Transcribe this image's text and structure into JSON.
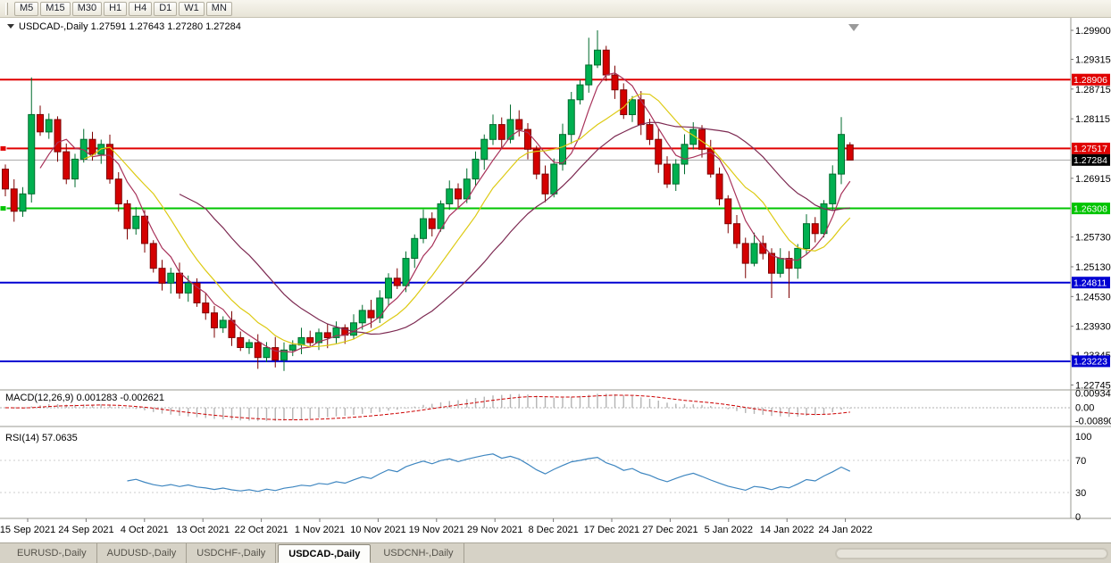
{
  "toolbar": {
    "timeframes": [
      "M5",
      "M15",
      "M30",
      "H1",
      "H4",
      "D1",
      "W1",
      "MN"
    ]
  },
  "chart": {
    "symbol_label": "USDCAD-,Daily",
    "ohlc_string": "1.27591 1.27643 1.27280 1.27284",
    "open": "1.27591",
    "high": "1.27643",
    "low": "1.27280",
    "close": "1.27284",
    "price_axis": [
      "1.29900",
      "1.29315",
      "1.28715",
      "1.28115",
      "1.26915",
      "1.25730",
      "1.25130",
      "1.24530",
      "1.23930",
      "1.23345",
      "1.22745"
    ]
  },
  "macd": {
    "label": "MACD(12,26,9) 0.001283 -0.002621",
    "axis": [
      "0.009345",
      "0.00",
      "-0.008902"
    ]
  },
  "rsi": {
    "label": "RSI(14) 57.0635",
    "axis": [
      "100",
      "70",
      "30",
      "0"
    ]
  },
  "time_axis": [
    "15 Sep 2021",
    "24 Sep 2021",
    "4 Oct 2021",
    "13 Oct 2021",
    "22 Oct 2021",
    "1 Nov 2021",
    "10 Nov 2021",
    "19 Nov 2021",
    "29 Nov 2021",
    "8 Dec 2021",
    "17 Dec 2021",
    "27 Dec 2021",
    "5 Jan 2022",
    "14 Jan 2022",
    "24 Jan 2022"
  ],
  "tabs": [
    {
      "label": "EURUSD-,Daily",
      "active": false
    },
    {
      "label": "AUDUSD-,Daily",
      "active": false
    },
    {
      "label": "USDCHF-,Daily",
      "active": false
    },
    {
      "label": "USDCAD-,Daily",
      "active": true
    },
    {
      "label": "USDCNH-,Daily",
      "active": false
    }
  ],
  "chart_data": {
    "type": "candlestick",
    "symbol": "USDCAD",
    "timeframe": "Daily",
    "price_min": 1.227,
    "price_max": 1.299,
    "visible_range": {
      "start": "15 Sep 2021",
      "end": "28 Jan 2022"
    },
    "last_candle": {
      "open": 1.27591,
      "high": 1.27643,
      "low": 1.2728,
      "close": 1.27284
    },
    "first_open": 1.271,
    "closes": [
      1.267,
      1.2625,
      1.266,
      1.282,
      1.2785,
      1.281,
      1.2745,
      1.269,
      1.273,
      1.277,
      1.274,
      1.276,
      1.269,
      1.264,
      1.259,
      1.2615,
      1.256,
      1.251,
      1.248,
      1.25,
      1.246,
      1.248,
      1.244,
      1.242,
      1.239,
      1.2405,
      1.237,
      1.235,
      1.236,
      1.233,
      1.235,
      1.2325,
      1.2345,
      1.2355,
      1.237,
      1.236,
      1.238,
      1.237,
      1.239,
      1.2375,
      1.24,
      1.2425,
      1.241,
      1.245,
      1.249,
      1.2475,
      1.253,
      1.257,
      1.261,
      1.259,
      1.264,
      1.267,
      1.265,
      1.269,
      1.273,
      1.277,
      1.28,
      1.277,
      1.281,
      1.279,
      1.275,
      1.27,
      1.266,
      1.272,
      1.278,
      1.285,
      1.288,
      1.292,
      1.295,
      1.29,
      1.287,
      1.282,
      1.285,
      1.28,
      1.277,
      1.272,
      1.268,
      1.272,
      1.276,
      1.279,
      1.275,
      1.27,
      1.265,
      1.26,
      1.256,
      1.252,
      1.256,
      1.254,
      1.25,
      1.253,
      1.251,
      1.255,
      1.26,
      1.258,
      1.264,
      1.27,
      1.278,
      1.27284
    ],
    "wick_overrides": {
      "3": {
        "high": 1.2895
      },
      "29": {
        "low": 1.2307
      },
      "31": {
        "low": 1.231
      },
      "58": {
        "high": 1.284
      },
      "67": {
        "high": 1.2975
      },
      "68": {
        "high": 1.299
      },
      "85": {
        "low": 1.249
      },
      "88": {
        "low": 1.245
      },
      "90": {
        "low": 1.245
      },
      "96": {
        "high": 1.2815
      }
    },
    "colors": {
      "bull_fill": "#00b050",
      "bull_border": "#006b2d",
      "bear_fill": "#d40000",
      "bear_border": "#7d0000"
    },
    "levels": [
      {
        "price": "1.28906",
        "color": "#e00000",
        "type": "resistance",
        "edge_marker": false
      },
      {
        "price": "1.27517",
        "color": "#e00000",
        "type": "resistance",
        "edge_marker": true
      },
      {
        "price": "1.26308",
        "color": "#00c400",
        "type": "support",
        "edge_marker": true
      },
      {
        "price": "1.24811",
        "color": "#0000d2",
        "type": "support",
        "edge_marker": false
      },
      {
        "price": "1.23223",
        "color": "#0000d2",
        "type": "support",
        "edge_marker": false
      }
    ],
    "bid_line": {
      "price": "1.27284",
      "line_color": "#a8a8a8",
      "badge_color": "#000000"
    },
    "moving_averages": [
      {
        "period": 5,
        "color": "#a8325a"
      },
      {
        "period": 10,
        "color": "#ddca12"
      },
      {
        "period": 21,
        "color": "#7d2a52"
      }
    ],
    "indicators": {
      "macd": {
        "fast": 12,
        "slow": 26,
        "signal": 9,
        "current_main": 0.001283,
        "current_signal": -0.002621,
        "axis_max": 0.009345,
        "axis_min": -0.008902
      },
      "rsi": {
        "period": 14,
        "current": 57.0635,
        "axis": [
          100,
          70,
          30,
          0
        ]
      }
    }
  }
}
